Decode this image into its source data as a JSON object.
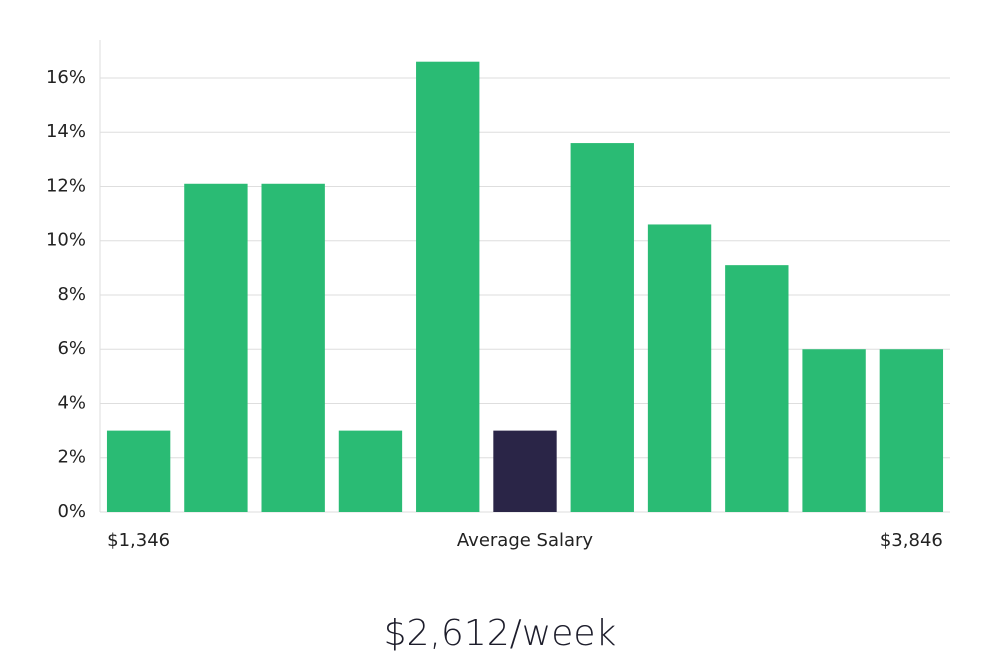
{
  "chart_data": {
    "type": "bar",
    "annotation": "$2,612/week",
    "categories": [
      "$1,346",
      null,
      null,
      null,
      null,
      "Average Salary",
      null,
      null,
      null,
      null,
      "$3,846"
    ],
    "values": [
      3,
      12.1,
      12.1,
      3,
      16.6,
      3,
      13.6,
      10.6,
      9.1,
      6,
      6
    ],
    "colors": [
      "#2abb74",
      "#2abb74",
      "#2abb74",
      "#2abb74",
      "#2abb74",
      "#2a2547",
      "#2abb74",
      "#2abb74",
      "#2abb74",
      "#2abb74",
      "#2abb74"
    ],
    "ylim": [
      0,
      17.4
    ],
    "yticks": [
      {
        "value": 0,
        "label": "0%"
      },
      {
        "value": 2,
        "label": "2%"
      },
      {
        "value": 4,
        "label": "4%"
      },
      {
        "value": 6,
        "label": "6%"
      },
      {
        "value": 8,
        "label": "8%"
      },
      {
        "value": 10,
        "label": "10%"
      },
      {
        "value": 12,
        "label": "12%"
      },
      {
        "value": 14,
        "label": "14%"
      },
      {
        "value": 16,
        "label": "16%"
      }
    ],
    "grid": true
  }
}
